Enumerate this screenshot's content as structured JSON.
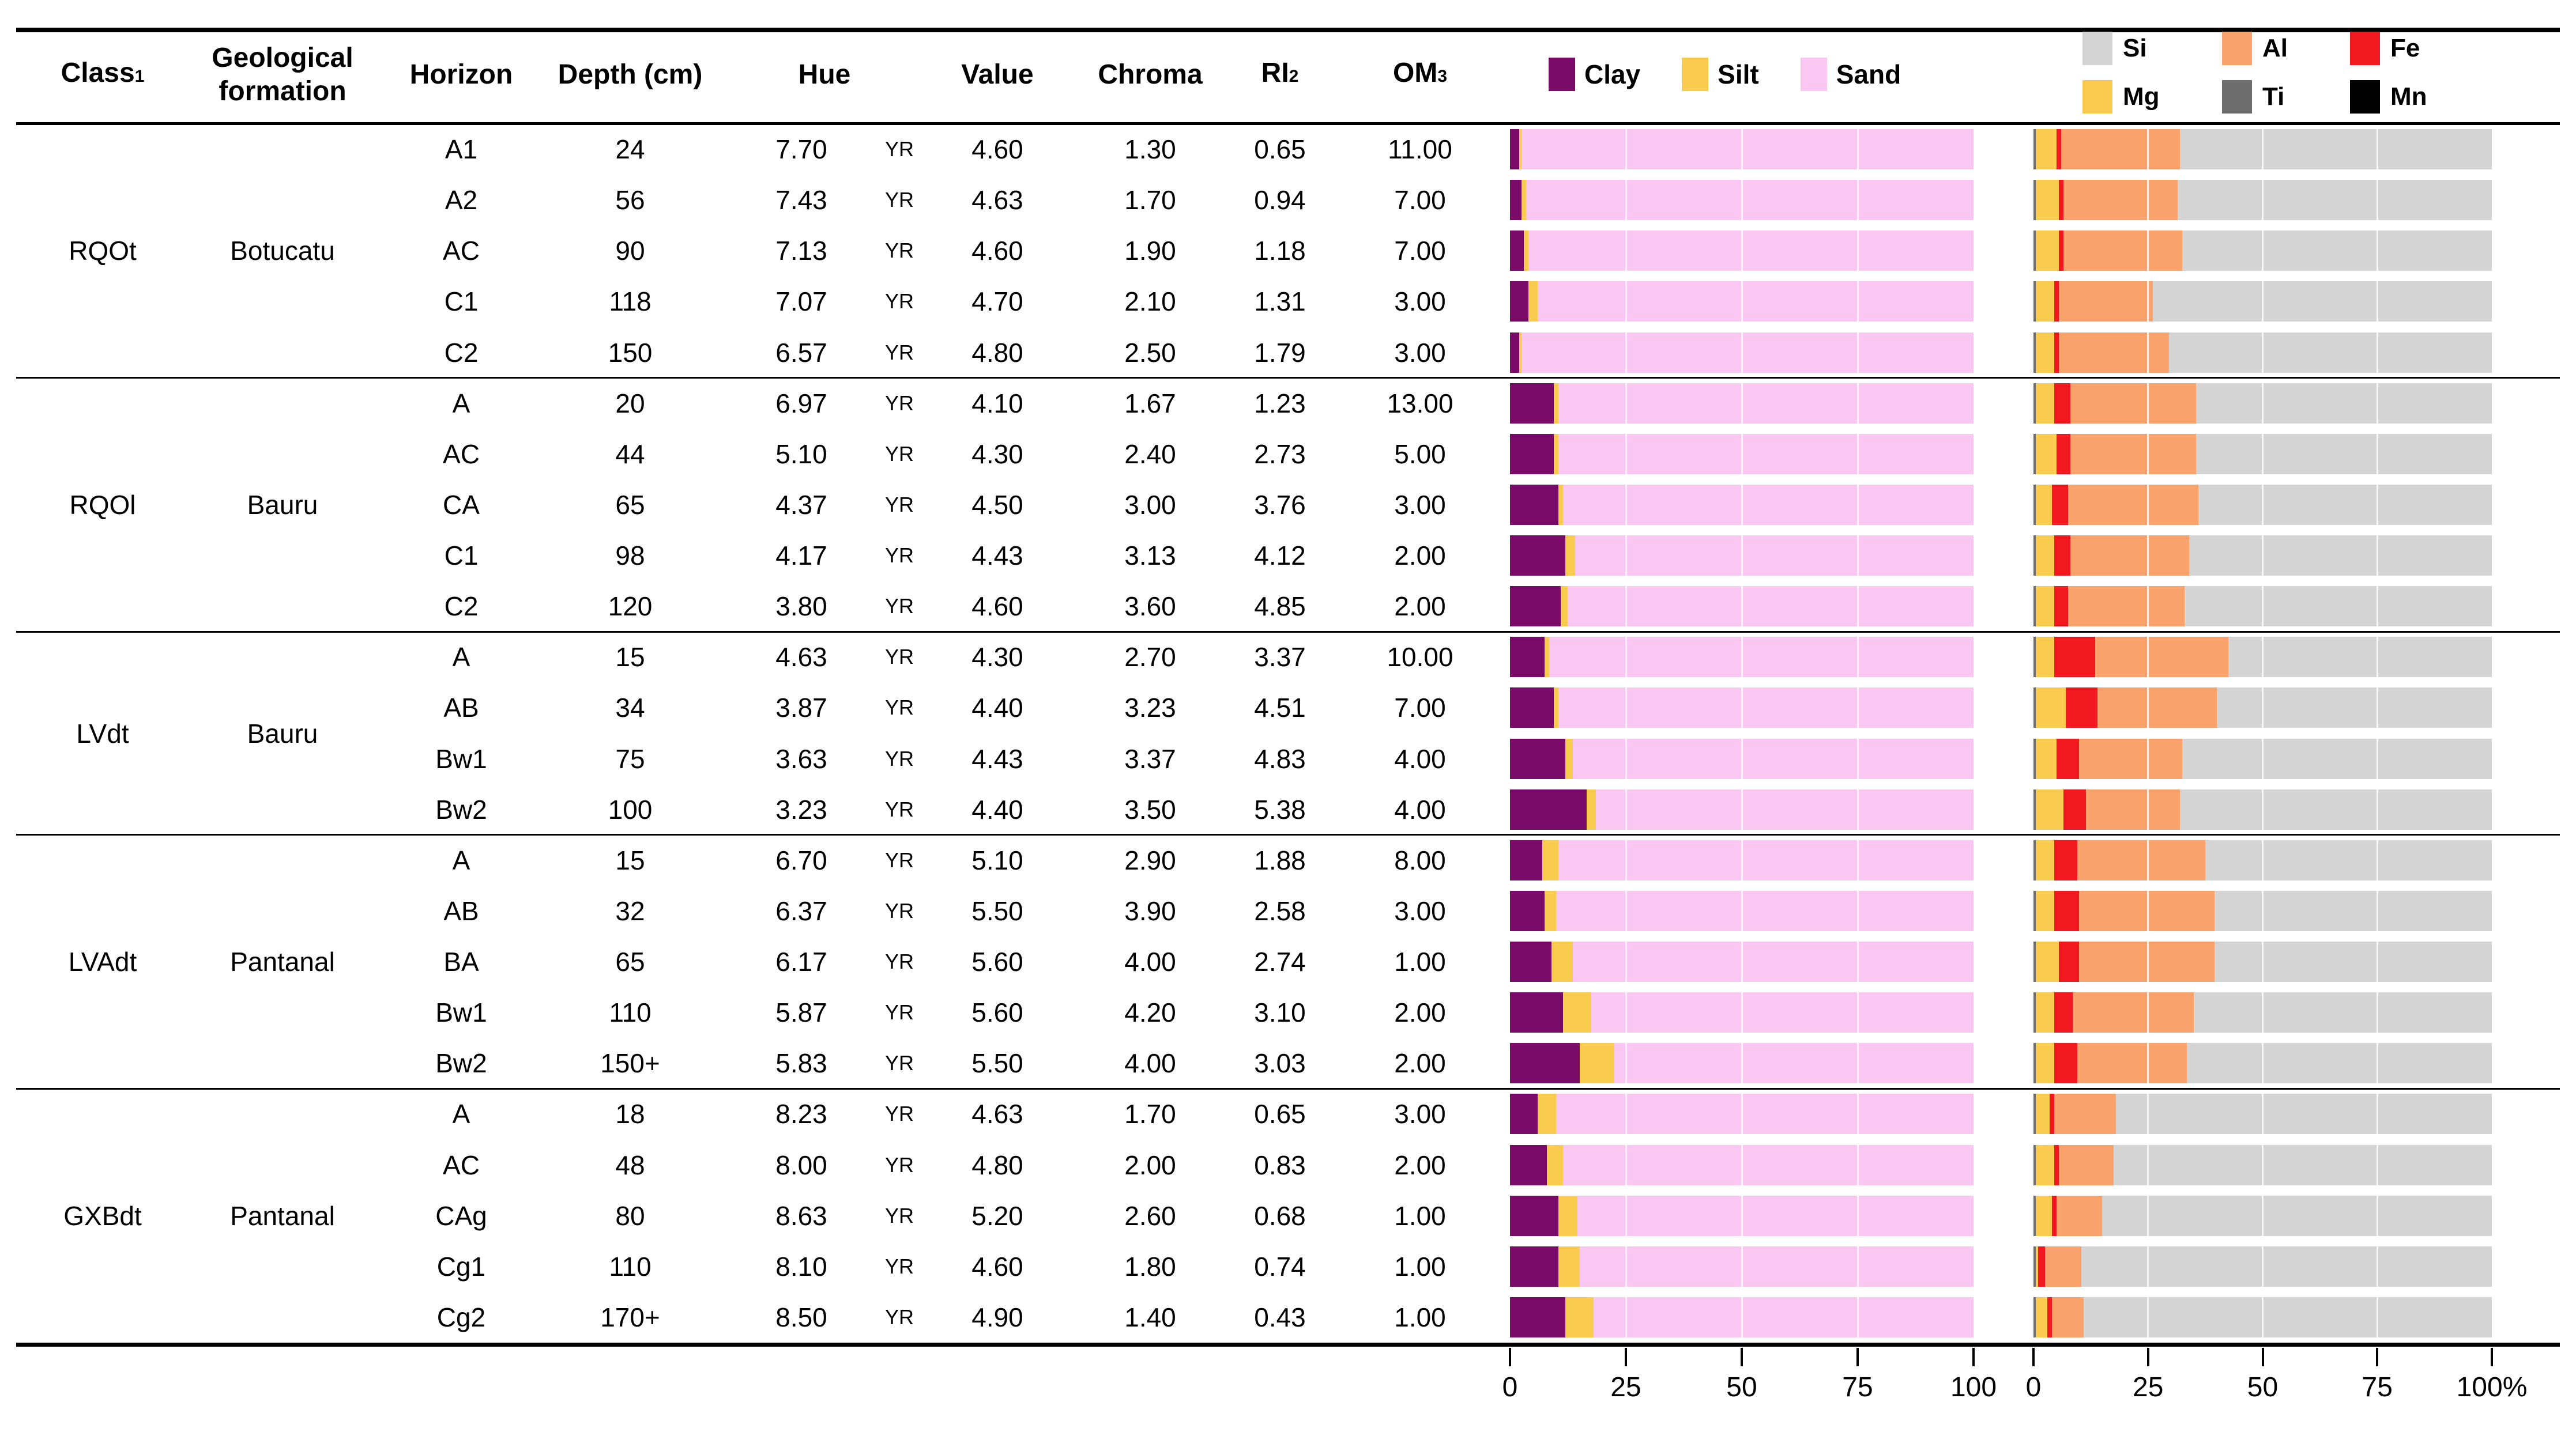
{
  "columns": {
    "class": "Class",
    "class_sup": "1",
    "formation_line1": "Geological",
    "formation_line2": "formation",
    "horizon": "Horizon",
    "depth": "Depth (cm)",
    "hue": "Hue",
    "value": "Value",
    "chroma": "Chroma",
    "ri": "RI",
    "ri_sup": "2",
    "om": "OM",
    "om_sup": "3"
  },
  "hue_unit": "YR",
  "legend_texture": [
    {
      "label": "Clay",
      "color": "#7A0A68"
    },
    {
      "label": "Silt",
      "color": "#F9CC4F"
    },
    {
      "label": "Sand",
      "color": "#FAC7F2"
    }
  ],
  "legend_elements": [
    {
      "label": "Si",
      "color": "#D4D4D4"
    },
    {
      "label": "Al",
      "color": "#FAA26C"
    },
    {
      "label": "Fe",
      "color": "#F2181F"
    },
    {
      "label": "Mg",
      "color": "#F9CC4F"
    },
    {
      "label": "Ti",
      "color": "#6E6E6E"
    },
    {
      "label": "Mn",
      "color": "#000000"
    }
  ],
  "axis_texture": {
    "ticks": [
      "0",
      "25",
      "50",
      "75",
      "100"
    ]
  },
  "axis_elements": {
    "ticks": [
      "0",
      "25",
      "50",
      "75",
      "100%"
    ]
  },
  "groups": [
    {
      "class": "RQOt",
      "formation": "Botucatu",
      "rows": [
        {
          "horizon": "A1",
          "depth": "24",
          "hue": "7.70",
          "value": "4.60",
          "chroma": "1.30",
          "ri": "0.65",
          "om": "11.00",
          "texture": {
            "clay": 2,
            "silt": 0.5,
            "sand": 97.5
          },
          "elements": {
            "mn": 0,
            "ti": 0.5,
            "mg": 4.5,
            "fe": 1,
            "al": 26,
            "si": 68
          }
        },
        {
          "horizon": "A2",
          "depth": "56",
          "hue": "7.43",
          "value": "4.63",
          "chroma": "1.70",
          "ri": "0.94",
          "om": "7.00",
          "texture": {
            "clay": 2.5,
            "silt": 1,
            "sand": 96.5
          },
          "elements": {
            "mn": 0,
            "ti": 0.5,
            "mg": 5,
            "fe": 1,
            "al": 25,
            "si": 68.5
          }
        },
        {
          "horizon": "AC",
          "depth": "90",
          "hue": "7.13",
          "value": "4.60",
          "chroma": "1.90",
          "ri": "1.18",
          "om": "7.00",
          "texture": {
            "clay": 3,
            "silt": 1,
            "sand": 96
          },
          "elements": {
            "mn": 0,
            "ti": 0.5,
            "mg": 5,
            "fe": 1,
            "al": 26,
            "si": 67.5
          }
        },
        {
          "horizon": "C1",
          "depth": "118",
          "hue": "7.07",
          "value": "4.70",
          "chroma": "2.10",
          "ri": "1.31",
          "om": "3.00",
          "texture": {
            "clay": 4,
            "silt": 2,
            "sand": 94
          },
          "elements": {
            "mn": 0,
            "ti": 0.5,
            "mg": 4,
            "fe": 1,
            "al": 20.5,
            "si": 74
          }
        },
        {
          "horizon": "C2",
          "depth": "150",
          "hue": "6.57",
          "value": "4.80",
          "chroma": "2.50",
          "ri": "1.79",
          "om": "3.00",
          "texture": {
            "clay": 2,
            "silt": 0.5,
            "sand": 97.5
          },
          "elements": {
            "mn": 0,
            "ti": 0.5,
            "mg": 4,
            "fe": 1,
            "al": 24,
            "si": 70.5
          }
        }
      ]
    },
    {
      "class": "RQOl",
      "formation": "Bauru",
      "rows": [
        {
          "horizon": "A",
          "depth": "20",
          "hue": "6.97",
          "value": "4.10",
          "chroma": "1.67",
          "ri": "1.23",
          "om": "13.00",
          "texture": {
            "clay": 9.5,
            "silt": 1,
            "sand": 89.5
          },
          "elements": {
            "mn": 0,
            "ti": 0.5,
            "mg": 4,
            "fe": 3.5,
            "al": 27.5,
            "si": 64.5
          }
        },
        {
          "horizon": "AC",
          "depth": "44",
          "hue": "5.10",
          "value": "4.30",
          "chroma": "2.40",
          "ri": "2.73",
          "om": "5.00",
          "texture": {
            "clay": 9.5,
            "silt": 1,
            "sand": 89.5
          },
          "elements": {
            "mn": 0,
            "ti": 0.5,
            "mg": 4.5,
            "fe": 3,
            "al": 27.5,
            "si": 64.5
          }
        },
        {
          "horizon": "CA",
          "depth": "65",
          "hue": "4.37",
          "value": "4.50",
          "chroma": "3.00",
          "ri": "3.76",
          "om": "3.00",
          "texture": {
            "clay": 10.5,
            "silt": 1,
            "sand": 88.5
          },
          "elements": {
            "mn": 0,
            "ti": 0.5,
            "mg": 3.5,
            "fe": 3.5,
            "al": 28.5,
            "si": 64
          }
        },
        {
          "horizon": "C1",
          "depth": "98",
          "hue": "4.17",
          "value": "4.43",
          "chroma": "3.13",
          "ri": "4.12",
          "om": "2.00",
          "texture": {
            "clay": 12,
            "silt": 2,
            "sand": 86
          },
          "elements": {
            "mn": 0,
            "ti": 0.5,
            "mg": 4,
            "fe": 3.5,
            "al": 26,
            "si": 66
          }
        },
        {
          "horizon": "C2",
          "depth": "120",
          "hue": "3.80",
          "value": "4.60",
          "chroma": "3.60",
          "ri": "4.85",
          "om": "2.00",
          "texture": {
            "clay": 11,
            "silt": 1.5,
            "sand": 87.5
          },
          "elements": {
            "mn": 0,
            "ti": 0.5,
            "mg": 4,
            "fe": 3,
            "al": 25.5,
            "si": 67
          }
        }
      ]
    },
    {
      "class": "LVdt",
      "formation": "Bauru",
      "rows": [
        {
          "horizon": "A",
          "depth": "15",
          "hue": "4.63",
          "value": "4.30",
          "chroma": "2.70",
          "ri": "3.37",
          "om": "10.00",
          "texture": {
            "clay": 7.5,
            "silt": 1,
            "sand": 91.5
          },
          "elements": {
            "mn": 0,
            "ti": 0.5,
            "mg": 4,
            "fe": 9,
            "al": 29,
            "si": 57.5
          }
        },
        {
          "horizon": "AB",
          "depth": "34",
          "hue": "3.87",
          "value": "4.40",
          "chroma": "3.23",
          "ri": "4.51",
          "om": "7.00",
          "texture": {
            "clay": 9.5,
            "silt": 1,
            "sand": 89.5
          },
          "elements": {
            "mn": 0,
            "ti": 0.5,
            "mg": 6.5,
            "fe": 7,
            "al": 26,
            "si": 60
          }
        },
        {
          "horizon": "Bw1",
          "depth": "75",
          "hue": "3.63",
          "value": "4.43",
          "chroma": "3.37",
          "ri": "4.83",
          "om": "4.00",
          "texture": {
            "clay": 12,
            "silt": 1.5,
            "sand": 86.5
          },
          "elements": {
            "mn": 0,
            "ti": 0.5,
            "mg": 4.5,
            "fe": 5,
            "al": 22.5,
            "si": 67.5
          }
        },
        {
          "horizon": "Bw2",
          "depth": "100",
          "hue": "3.23",
          "value": "4.40",
          "chroma": "3.50",
          "ri": "5.38",
          "om": "4.00",
          "texture": {
            "clay": 16.5,
            "silt": 2,
            "sand": 81.5
          },
          "elements": {
            "mn": 0,
            "ti": 0.5,
            "mg": 6,
            "fe": 5,
            "al": 20.5,
            "si": 68
          }
        }
      ]
    },
    {
      "class": "LVAdt",
      "formation": "Pantanal",
      "rows": [
        {
          "horizon": "A",
          "depth": "15",
          "hue": "6.70",
          "value": "5.10",
          "chroma": "2.90",
          "ri": "1.88",
          "om": "8.00",
          "texture": {
            "clay": 7,
            "silt": 3.5,
            "sand": 89.5
          },
          "elements": {
            "mn": 0,
            "ti": 0.5,
            "mg": 4,
            "fe": 5,
            "al": 28,
            "si": 62.5
          }
        },
        {
          "horizon": "AB",
          "depth": "32",
          "hue": "6.37",
          "value": "5.50",
          "chroma": "3.90",
          "ri": "2.58",
          "om": "3.00",
          "texture": {
            "clay": 7.5,
            "silt": 2.5,
            "sand": 90
          },
          "elements": {
            "mn": 0,
            "ti": 0.5,
            "mg": 4,
            "fe": 5.5,
            "al": 29.5,
            "si": 60.5
          }
        },
        {
          "horizon": "BA",
          "depth": "65",
          "hue": "6.17",
          "value": "5.60",
          "chroma": "4.00",
          "ri": "2.74",
          "om": "1.00",
          "texture": {
            "clay": 9,
            "silt": 4.5,
            "sand": 86.5
          },
          "elements": {
            "mn": 0,
            "ti": 0.5,
            "mg": 5,
            "fe": 4.5,
            "al": 29.5,
            "si": 60.5
          }
        },
        {
          "horizon": "Bw1",
          "depth": "110",
          "hue": "5.87",
          "value": "5.60",
          "chroma": "4.20",
          "ri": "3.10",
          "om": "2.00",
          "texture": {
            "clay": 11.5,
            "silt": 6,
            "sand": 82.5
          },
          "elements": {
            "mn": 0,
            "ti": 0.5,
            "mg": 4,
            "fe": 4,
            "al": 26.5,
            "si": 65
          }
        },
        {
          "horizon": "Bw2",
          "depth": "150+",
          "hue": "5.83",
          "value": "5.50",
          "chroma": "4.00",
          "ri": "3.03",
          "om": "2.00",
          "texture": {
            "clay": 15,
            "silt": 7.5,
            "sand": 77.5
          },
          "elements": {
            "mn": 0,
            "ti": 0.5,
            "mg": 4,
            "fe": 5,
            "al": 24,
            "si": 66.5
          }
        }
      ]
    },
    {
      "class": "GXBdt",
      "formation": "Pantanal",
      "rows": [
        {
          "horizon": "A",
          "depth": "18",
          "hue": "8.23",
          "value": "4.63",
          "chroma": "1.70",
          "ri": "0.65",
          "om": "3.00",
          "texture": {
            "clay": 6,
            "silt": 4,
            "sand": 90
          },
          "elements": {
            "mn": 0,
            "ti": 0.5,
            "mg": 3,
            "fe": 1,
            "al": 13.5,
            "si": 82
          }
        },
        {
          "horizon": "AC",
          "depth": "48",
          "hue": "8.00",
          "value": "4.80",
          "chroma": "2.00",
          "ri": "0.83",
          "om": "2.00",
          "texture": {
            "clay": 8,
            "silt": 3.5,
            "sand": 88.5
          },
          "elements": {
            "mn": 0,
            "ti": 0.5,
            "mg": 4,
            "fe": 1,
            "al": 12,
            "si": 82.5
          }
        },
        {
          "horizon": "CAg",
          "depth": "80",
          "hue": "8.63",
          "value": "5.20",
          "chroma": "2.60",
          "ri": "0.68",
          "om": "1.00",
          "texture": {
            "clay": 10.5,
            "silt": 4,
            "sand": 85.5
          },
          "elements": {
            "mn": 0,
            "ti": 0.5,
            "mg": 3.5,
            "fe": 1,
            "al": 10,
            "si": 85
          }
        },
        {
          "horizon": "Cg1",
          "depth": "110",
          "hue": "8.10",
          "value": "4.60",
          "chroma": "1.80",
          "ri": "0.74",
          "om": "1.00",
          "texture": {
            "clay": 10.5,
            "silt": 4.5,
            "sand": 85
          },
          "elements": {
            "mn": 0,
            "ti": 0.5,
            "mg": 0.5,
            "fe": 1.5,
            "al": 8,
            "si": 89.5
          }
        },
        {
          "horizon": "Cg2",
          "depth": "170+",
          "hue": "8.50",
          "value": "4.90",
          "chroma": "1.40",
          "ri": "0.43",
          "om": "1.00",
          "texture": {
            "clay": 12,
            "silt": 6,
            "sand": 82
          },
          "elements": {
            "mn": 0,
            "ti": 0.5,
            "mg": 2.5,
            "fe": 1,
            "al": 7,
            "si": 89
          }
        }
      ]
    }
  ],
  "chart_data": [
    {
      "type": "bar",
      "stacked": true,
      "orientation": "horizontal",
      "title": "Particle size distribution (%)",
      "xlabel": "",
      "ylabel": "",
      "xlim": [
        0,
        100
      ],
      "tick_labels": [
        "0",
        "25",
        "50",
        "75",
        "100"
      ],
      "legend_position": "top",
      "categories": [
        "A1",
        "A2",
        "AC",
        "C1",
        "C2",
        "A",
        "AC",
        "CA",
        "C1",
        "C2",
        "A",
        "AB",
        "Bw1",
        "Bw2",
        "A",
        "AB",
        "BA",
        "Bw1",
        "Bw2",
        "A",
        "AC",
        "CAg",
        "Cg1",
        "Cg2"
      ],
      "series": [
        {
          "name": "Clay",
          "values": [
            2,
            2.5,
            3,
            4,
            2,
            9.5,
            9.5,
            10.5,
            12,
            11,
            7.5,
            9.5,
            12,
            16.5,
            7,
            7.5,
            9,
            11.5,
            15,
            6,
            8,
            10.5,
            10.5,
            12
          ]
        },
        {
          "name": "Silt",
          "values": [
            0.5,
            1,
            1,
            2,
            0.5,
            1,
            1,
            1,
            2,
            1.5,
            1,
            1,
            1.5,
            2,
            3.5,
            2.5,
            4.5,
            6,
            7.5,
            4,
            3.5,
            4,
            4.5,
            6
          ]
        },
        {
          "name": "Sand",
          "values": [
            97.5,
            96.5,
            96,
            94,
            97.5,
            89.5,
            89.5,
            88.5,
            86,
            87.5,
            91.5,
            89.5,
            86.5,
            81.5,
            89.5,
            90,
            86.5,
            82.5,
            77.5,
            90,
            88.5,
            85.5,
            85,
            82
          ]
        }
      ]
    },
    {
      "type": "bar",
      "stacked": true,
      "orientation": "horizontal",
      "title": "Elemental composition (%)",
      "xlabel": "",
      "ylabel": "",
      "xlim": [
        0,
        100
      ],
      "tick_labels": [
        "0",
        "25",
        "50",
        "75",
        "100%"
      ],
      "legend_position": "top",
      "categories": [
        "A1",
        "A2",
        "AC",
        "C1",
        "C2",
        "A",
        "AC",
        "CA",
        "C1",
        "C2",
        "A",
        "AB",
        "Bw1",
        "Bw2",
        "A",
        "AB",
        "BA",
        "Bw1",
        "Bw2",
        "A",
        "AC",
        "CAg",
        "Cg1",
        "Cg2"
      ],
      "series": [
        {
          "name": "Mn",
          "values": [
            0,
            0,
            0,
            0,
            0,
            0,
            0,
            0,
            0,
            0,
            0,
            0,
            0,
            0,
            0,
            0,
            0,
            0,
            0,
            0,
            0,
            0,
            0,
            0
          ]
        },
        {
          "name": "Ti",
          "values": [
            0.5,
            0.5,
            0.5,
            0.5,
            0.5,
            0.5,
            0.5,
            0.5,
            0.5,
            0.5,
            0.5,
            0.5,
            0.5,
            0.5,
            0.5,
            0.5,
            0.5,
            0.5,
            0.5,
            0.5,
            0.5,
            0.5,
            0.5,
            0.5
          ]
        },
        {
          "name": "Mg",
          "values": [
            4.5,
            5,
            5,
            4,
            4,
            4,
            4.5,
            3.5,
            4,
            4,
            4,
            6.5,
            4.5,
            6,
            4,
            4,
            5,
            4,
            4,
            3,
            4,
            3.5,
            0.5,
            2.5
          ]
        },
        {
          "name": "Fe",
          "values": [
            1,
            1,
            1,
            1,
            1,
            3.5,
            3,
            3.5,
            3.5,
            3,
            9,
            7,
            5,
            5,
            5,
            5.5,
            4.5,
            4,
            5,
            1,
            1,
            1,
            1.5,
            1
          ]
        },
        {
          "name": "Al",
          "values": [
            26,
            25,
            26,
            20.5,
            24,
            27.5,
            27.5,
            28.5,
            26,
            25.5,
            29,
            26,
            22.5,
            20.5,
            28,
            29.5,
            29.5,
            26.5,
            24,
            13.5,
            12,
            10,
            8,
            7
          ]
        },
        {
          "name": "Si",
          "values": [
            68,
            68.5,
            67.5,
            74,
            70.5,
            64.5,
            64.5,
            64,
            66,
            67,
            57.5,
            60,
            67.5,
            68,
            62.5,
            60.5,
            60.5,
            65,
            66.5,
            82,
            82.5,
            85,
            89.5,
            89
          ]
        }
      ]
    }
  ]
}
